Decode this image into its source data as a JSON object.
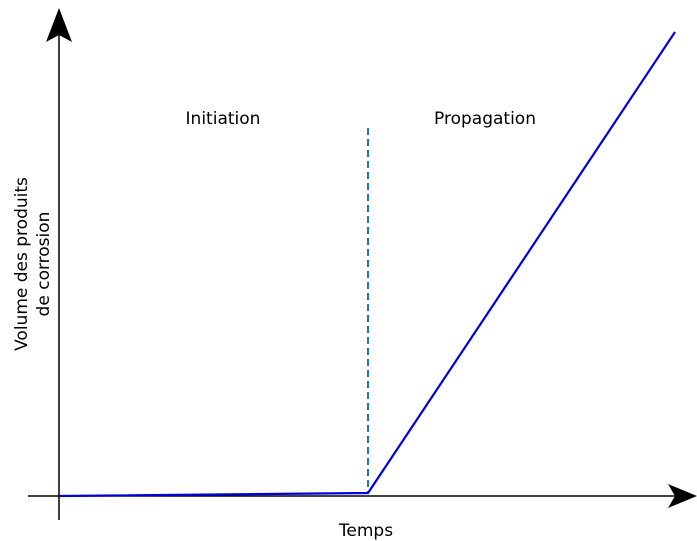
{
  "labels": {
    "initiation": "Initiation",
    "propagation": "Propagation"
  },
  "axes": {
    "x_label": "Temps",
    "y_label": [
      "Volume des produits",
      "de corrosion"
    ]
  }
}
